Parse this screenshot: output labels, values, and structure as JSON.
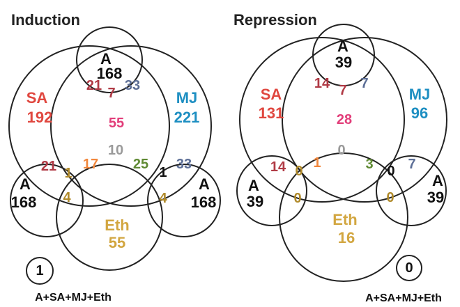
{
  "colors": {
    "outline": "#222222",
    "a": "#111111",
    "sa": "#e0473f",
    "mj": "#1e8fc2",
    "eth": "#d2a640",
    "a_sa": "#b03a45",
    "a_mj": "#5d6f97",
    "sa_mj": "#c73a6a",
    "center": "#e23e7a",
    "sa_eth": "#f2873c",
    "mj_eth": "#5f8a33",
    "all_three": "#9a9a9a",
    "a_eth": "#b08a2a"
  },
  "panels": [
    {
      "title": "Induction",
      "a_top_label": "A",
      "a_top_count": "168",
      "sa_label": "SA",
      "sa_count": "192",
      "mj_label": "MJ",
      "mj_count": "221",
      "eth_label": "Eth",
      "eth_count": "55",
      "a_left_label": "A",
      "a_left_count": "168",
      "a_right_label": "A",
      "a_right_count": "168",
      "a_sa": "21",
      "a_sa_mj": "7",
      "a_mj": "33",
      "sa_mj": "55",
      "sa_mj_eth": "10",
      "a_sa_left": "21",
      "a_sa_eth_left": "1",
      "a_eth_left": "4",
      "sa_eth": "17",
      "mj_eth": "25",
      "a_mj_eth_right": "1",
      "a_mj_right": "33",
      "a_eth_right": "4",
      "all_count": "1",
      "all_label": "A+SA+MJ+Eth"
    },
    {
      "title": "Repression",
      "a_top_label": "A",
      "a_top_count": "39",
      "sa_label": "SA",
      "sa_count": "131",
      "mj_label": "MJ",
      "mj_count": "96",
      "eth_label": "Eth",
      "eth_count": "16",
      "a_left_label": "A",
      "a_left_count": "39",
      "a_right_label": "A",
      "a_right_count": "39",
      "a_sa": "14",
      "a_sa_mj": "7",
      "a_mj": "7",
      "sa_mj": "28",
      "sa_mj_eth": "0",
      "a_sa_left": "14",
      "a_sa_eth_left": "0",
      "a_eth_left": "0",
      "sa_eth": "1",
      "mj_eth": "3",
      "a_mj_eth_right": "0",
      "a_mj_right": "7",
      "a_eth_right": "0",
      "all_count": "0",
      "all_label": "A+SA+MJ+Eth"
    }
  ]
}
